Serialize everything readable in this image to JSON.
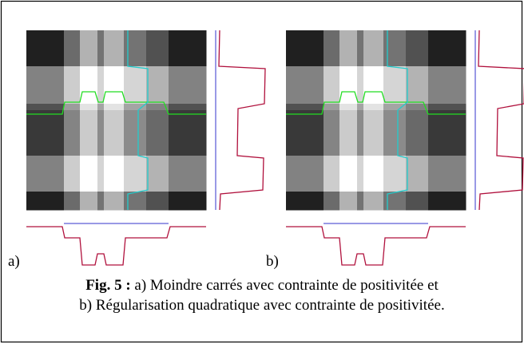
{
  "figure": {
    "panel_labels": [
      "a)",
      "b)"
    ],
    "caption": {
      "label": "Fig. 5 :",
      "line1": "a) Moindre carrés avec contrainte de positivitée et",
      "line2": "b) Régularisation quadratique avec contrainte de positivitée."
    }
  }
}
